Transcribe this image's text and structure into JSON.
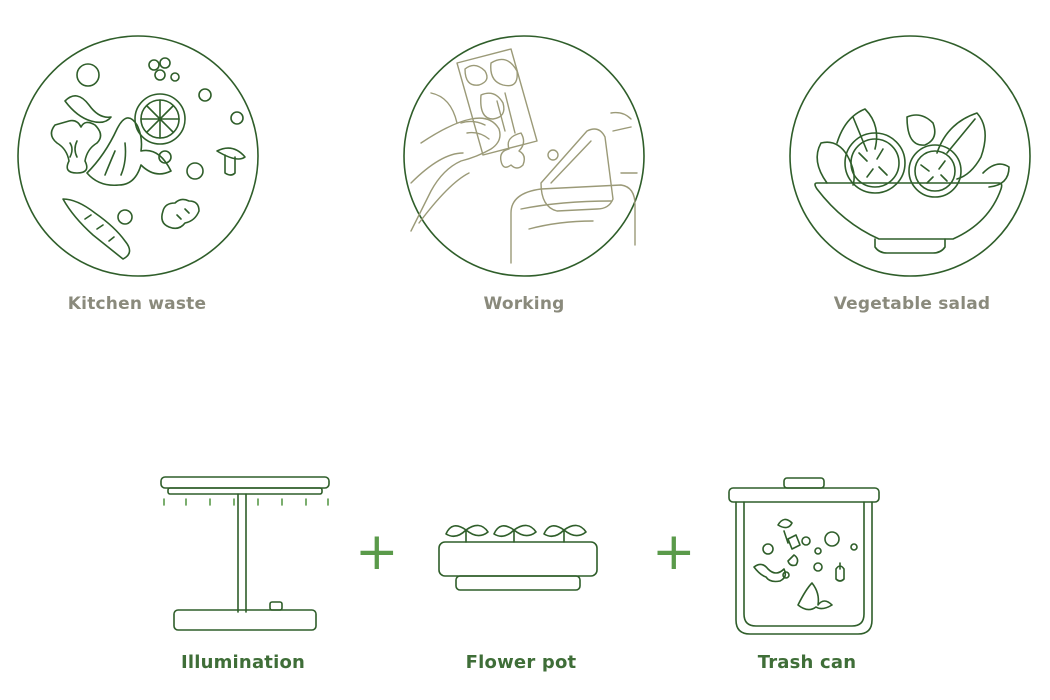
{
  "top_row": {
    "items": [
      {
        "label": "Kitchen waste",
        "icon": "kitchen-waste-illustration-icon"
      },
      {
        "label": "Working",
        "icon": "working-illustration-icon"
      },
      {
        "label": "Vegetable salad",
        "icon": "vegetable-salad-illustration-icon"
      }
    ]
  },
  "bottom_row": {
    "items": [
      {
        "label": "Illumination",
        "icon": "grow-lamp-icon"
      },
      {
        "label": "Flower pot",
        "icon": "flower-pot-icon"
      },
      {
        "label": "Trash can",
        "icon": "trash-can-icon"
      }
    ],
    "operators": [
      "+",
      "+"
    ]
  },
  "colors": {
    "line_green": "#2f5e2a",
    "accent_green": "#5a9a4a",
    "top_label_gray": "#8a8a7c",
    "bottom_label_green": "#3f6e38",
    "working_line": "#9b9a78"
  }
}
